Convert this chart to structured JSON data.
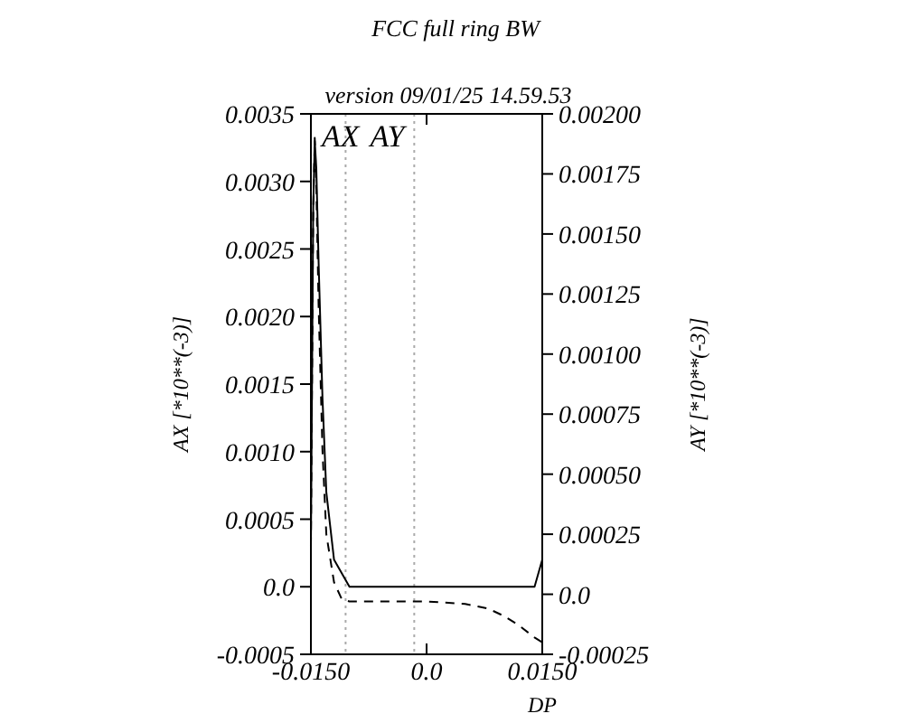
{
  "chart_data": {
    "type": "line",
    "title": "FCC full ring BW",
    "subtitle": "version 09/01/25 14.59.53",
    "xlabel": "DP",
    "ylabel": "AX  [*10**(-3)]",
    "y2label": "AY  [*10**(-3)]",
    "xlim": [
      -0.015,
      0.015
    ],
    "xticks": [
      {
        "value": -0.015,
        "label": "-0.0150"
      },
      {
        "value": 0,
        "label": "0.0"
      },
      {
        "value": 0.015,
        "label": "0.0150"
      }
    ],
    "ylim": [
      -0.0005,
      0.0035
    ],
    "yticks": [
      -0.0005,
      {
        "value": 0,
        "label": "0.0"
      },
      0.0005,
      {
        "value": 0.001,
        "label": "0.0010"
      },
      0.0015,
      {
        "value": 0.002,
        "label": "0.0020"
      },
      0.0025,
      {
        "value": 0.003,
        "label": "0.0030"
      },
      0.0035
    ],
    "y2lim": [
      -0.00025,
      0.002
    ],
    "y2ticks": [
      -0.00025,
      {
        "value": 0,
        "label": "0.0"
      },
      0.00025,
      {
        "value": 0.0005,
        "label": "0.00050"
      },
      0.00075,
      {
        "value": 0.001,
        "label": "0.00100"
      },
      0.00125,
      {
        "value": 0.0015,
        "label": "0.00150"
      },
      0.00175,
      {
        "value": 0.002,
        "label": "0.00200"
      }
    ],
    "legend": "top left",
    "grid": false,
    "marker": "none",
    "ref_lines": [
      {
        "axis": "x",
        "value": -0.0105,
        "color": "#aaaaaa",
        "line_style": "dotted"
      },
      {
        "axis": "x",
        "value": -0.0016,
        "color": "#aaaaaa",
        "line_style": "dotted"
      }
    ],
    "series": [
      {
        "name": "AX",
        "color": "#000000",
        "line_style": "solid",
        "x": [
          -0.015,
          -0.0147,
          -0.0145,
          -0.0143,
          -0.014,
          -0.0135,
          -0.013,
          -0.012,
          -0.011,
          -0.01,
          -0.005,
          0,
          0.004,
          0.0045,
          0.005,
          0.006,
          0.01,
          0.013,
          0.014,
          0.0145,
          0.015
        ],
        "values": [
          0.0003,
          0.0028,
          0.0033,
          0.0031,
          0.0024,
          0.0014,
          0.0007,
          0.0002,
          0.0001,
          0,
          0,
          0,
          0,
          0,
          0,
          0,
          0,
          0,
          0,
          0.0001,
          0.0002
        ]
      },
      {
        "name": "AY",
        "color": "#000000",
        "line_style": "dashed",
        "axis": "y2",
        "x": [
          -0.015,
          -0.0147,
          -0.0145,
          -0.0143,
          -0.014,
          -0.0135,
          -0.013,
          -0.012,
          -0.011,
          -0.01,
          -0.005,
          0,
          0.005,
          0.008,
          0.01,
          0.012,
          0.014,
          0.015
        ],
        "values": [
          0.0002,
          0.0016,
          0.0019,
          0.0017,
          0.0012,
          0.0006,
          0.00025,
          5e-05,
          -2e-05,
          -3e-05,
          -3e-05,
          -3e-05,
          -4e-05,
          -6e-05,
          -9e-05,
          -0.00013,
          -0.00018,
          -0.0002
        ]
      }
    ]
  }
}
